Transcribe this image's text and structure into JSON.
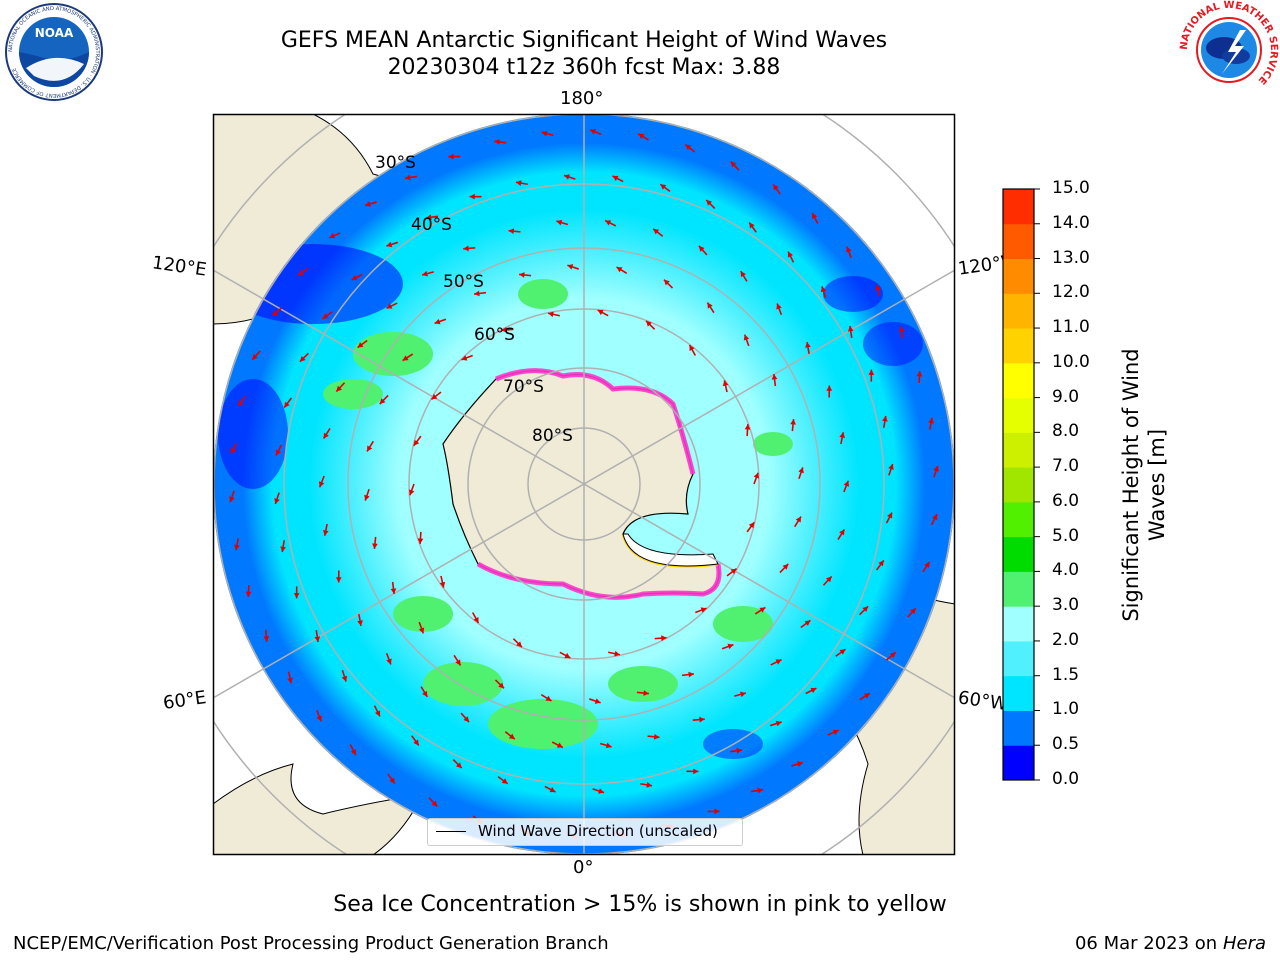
{
  "title": {
    "line1": "GEFS MEAN Antarctic Significant Height of Wind Waves",
    "line2": "20230304 t12z 360h fcst   Max: 3.88"
  },
  "logos": {
    "noaa": {
      "text": "NOAA",
      "ring_text": "NATIONAL OCEANIC AND ATMOSPHERIC ADMINISTRATION · U.S. DEPARTMENT OF COMMERCE",
      "icon": "noaa-logo"
    },
    "nws": {
      "ring_text": "NATIONAL WEATHER SERVICE",
      "icon": "nws-logo"
    }
  },
  "map": {
    "projection": "south-polar-stereographic",
    "meridian_labels": {
      "top": "180°",
      "bottom": "0°",
      "left_upper": "120°E",
      "left_lower": "60°E",
      "right_upper": "120°W",
      "right_lower": "60°W"
    },
    "latitude_labels": [
      "30°S",
      "40°S",
      "50°S",
      "60°S",
      "70°S",
      "80°S"
    ],
    "colors": {
      "land": "#efebd7",
      "ice_pink": "#ff33cc",
      "ice_yellow": "#ffd700",
      "grid": "#b0b0b0",
      "arrow": "#e00000"
    },
    "legend": "Wind Wave Direction (unscaled)"
  },
  "colorbar": {
    "label": "Significant Height of Wind Waves [m]",
    "label_lines": [
      "Significant Height of Wind",
      "Waves [m]"
    ],
    "ticks": [
      "0.0",
      "0.5",
      "1.0",
      "1.5",
      "2.0",
      "3.0",
      "4.0",
      "5.0",
      "6.0",
      "7.0",
      "8.0",
      "9.0",
      "10.0",
      "11.0",
      "12.0",
      "13.0",
      "14.0",
      "15.0"
    ],
    "colors": [
      "#0000ff",
      "#0078ff",
      "#00e5ff",
      "#50f0ff",
      "#a0ffff",
      "#50f070",
      "#00dc00",
      "#50f000",
      "#a0e600",
      "#ccf000",
      "#e6ff00",
      "#ffff00",
      "#ffd200",
      "#ffb400",
      "#ff8c00",
      "#ff5a00",
      "#ff2d00",
      "#ff0000"
    ]
  },
  "note": "Sea Ice Concentration > 15% is shown in pink to yellow",
  "footer": {
    "left": "NCEP/EMC/Verification Post Processing Product Generation Branch",
    "right_date": "06 Mar 2023 on",
    "right_host": "Hera"
  }
}
